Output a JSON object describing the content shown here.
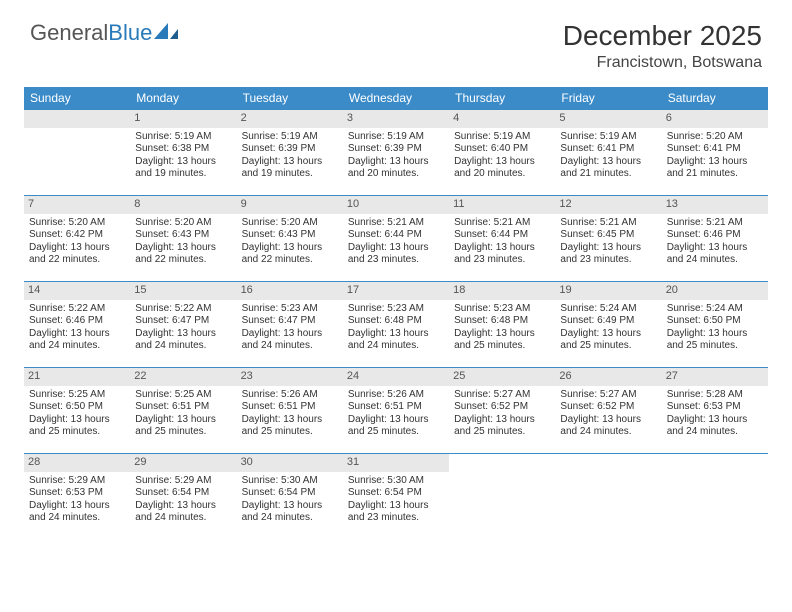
{
  "logo": {
    "part1": "General",
    "part2": "Blue"
  },
  "title": "December 2025",
  "location": "Francistown, Botswana",
  "header_bg": "#3b8bc9",
  "dayname_cell_bg": "#e8e8e8",
  "border_color": "#3b8bc9",
  "weekdays": [
    "Sunday",
    "Monday",
    "Tuesday",
    "Wednesday",
    "Thursday",
    "Friday",
    "Saturday"
  ],
  "weeks": [
    [
      {
        "day": "",
        "sunrise": "",
        "sunset": "",
        "daylight1": "",
        "daylight2": ""
      },
      {
        "day": "1",
        "sunrise": "Sunrise: 5:19 AM",
        "sunset": "Sunset: 6:38 PM",
        "daylight1": "Daylight: 13 hours",
        "daylight2": "and 19 minutes."
      },
      {
        "day": "2",
        "sunrise": "Sunrise: 5:19 AM",
        "sunset": "Sunset: 6:39 PM",
        "daylight1": "Daylight: 13 hours",
        "daylight2": "and 19 minutes."
      },
      {
        "day": "3",
        "sunrise": "Sunrise: 5:19 AM",
        "sunset": "Sunset: 6:39 PM",
        "daylight1": "Daylight: 13 hours",
        "daylight2": "and 20 minutes."
      },
      {
        "day": "4",
        "sunrise": "Sunrise: 5:19 AM",
        "sunset": "Sunset: 6:40 PM",
        "daylight1": "Daylight: 13 hours",
        "daylight2": "and 20 minutes."
      },
      {
        "day": "5",
        "sunrise": "Sunrise: 5:19 AM",
        "sunset": "Sunset: 6:41 PM",
        "daylight1": "Daylight: 13 hours",
        "daylight2": "and 21 minutes."
      },
      {
        "day": "6",
        "sunrise": "Sunrise: 5:20 AM",
        "sunset": "Sunset: 6:41 PM",
        "daylight1": "Daylight: 13 hours",
        "daylight2": "and 21 minutes."
      }
    ],
    [
      {
        "day": "7",
        "sunrise": "Sunrise: 5:20 AM",
        "sunset": "Sunset: 6:42 PM",
        "daylight1": "Daylight: 13 hours",
        "daylight2": "and 22 minutes."
      },
      {
        "day": "8",
        "sunrise": "Sunrise: 5:20 AM",
        "sunset": "Sunset: 6:43 PM",
        "daylight1": "Daylight: 13 hours",
        "daylight2": "and 22 minutes."
      },
      {
        "day": "9",
        "sunrise": "Sunrise: 5:20 AM",
        "sunset": "Sunset: 6:43 PM",
        "daylight1": "Daylight: 13 hours",
        "daylight2": "and 22 minutes."
      },
      {
        "day": "10",
        "sunrise": "Sunrise: 5:21 AM",
        "sunset": "Sunset: 6:44 PM",
        "daylight1": "Daylight: 13 hours",
        "daylight2": "and 23 minutes."
      },
      {
        "day": "11",
        "sunrise": "Sunrise: 5:21 AM",
        "sunset": "Sunset: 6:44 PM",
        "daylight1": "Daylight: 13 hours",
        "daylight2": "and 23 minutes."
      },
      {
        "day": "12",
        "sunrise": "Sunrise: 5:21 AM",
        "sunset": "Sunset: 6:45 PM",
        "daylight1": "Daylight: 13 hours",
        "daylight2": "and 23 minutes."
      },
      {
        "day": "13",
        "sunrise": "Sunrise: 5:21 AM",
        "sunset": "Sunset: 6:46 PM",
        "daylight1": "Daylight: 13 hours",
        "daylight2": "and 24 minutes."
      }
    ],
    [
      {
        "day": "14",
        "sunrise": "Sunrise: 5:22 AM",
        "sunset": "Sunset: 6:46 PM",
        "daylight1": "Daylight: 13 hours",
        "daylight2": "and 24 minutes."
      },
      {
        "day": "15",
        "sunrise": "Sunrise: 5:22 AM",
        "sunset": "Sunset: 6:47 PM",
        "daylight1": "Daylight: 13 hours",
        "daylight2": "and 24 minutes."
      },
      {
        "day": "16",
        "sunrise": "Sunrise: 5:23 AM",
        "sunset": "Sunset: 6:47 PM",
        "daylight1": "Daylight: 13 hours",
        "daylight2": "and 24 minutes."
      },
      {
        "day": "17",
        "sunrise": "Sunrise: 5:23 AM",
        "sunset": "Sunset: 6:48 PM",
        "daylight1": "Daylight: 13 hours",
        "daylight2": "and 24 minutes."
      },
      {
        "day": "18",
        "sunrise": "Sunrise: 5:23 AM",
        "sunset": "Sunset: 6:48 PM",
        "daylight1": "Daylight: 13 hours",
        "daylight2": "and 25 minutes."
      },
      {
        "day": "19",
        "sunrise": "Sunrise: 5:24 AM",
        "sunset": "Sunset: 6:49 PM",
        "daylight1": "Daylight: 13 hours",
        "daylight2": "and 25 minutes."
      },
      {
        "day": "20",
        "sunrise": "Sunrise: 5:24 AM",
        "sunset": "Sunset: 6:50 PM",
        "daylight1": "Daylight: 13 hours",
        "daylight2": "and 25 minutes."
      }
    ],
    [
      {
        "day": "21",
        "sunrise": "Sunrise: 5:25 AM",
        "sunset": "Sunset: 6:50 PM",
        "daylight1": "Daylight: 13 hours",
        "daylight2": "and 25 minutes."
      },
      {
        "day": "22",
        "sunrise": "Sunrise: 5:25 AM",
        "sunset": "Sunset: 6:51 PM",
        "daylight1": "Daylight: 13 hours",
        "daylight2": "and 25 minutes."
      },
      {
        "day": "23",
        "sunrise": "Sunrise: 5:26 AM",
        "sunset": "Sunset: 6:51 PM",
        "daylight1": "Daylight: 13 hours",
        "daylight2": "and 25 minutes."
      },
      {
        "day": "24",
        "sunrise": "Sunrise: 5:26 AM",
        "sunset": "Sunset: 6:51 PM",
        "daylight1": "Daylight: 13 hours",
        "daylight2": "and 25 minutes."
      },
      {
        "day": "25",
        "sunrise": "Sunrise: 5:27 AM",
        "sunset": "Sunset: 6:52 PM",
        "daylight1": "Daylight: 13 hours",
        "daylight2": "and 25 minutes."
      },
      {
        "day": "26",
        "sunrise": "Sunrise: 5:27 AM",
        "sunset": "Sunset: 6:52 PM",
        "daylight1": "Daylight: 13 hours",
        "daylight2": "and 24 minutes."
      },
      {
        "day": "27",
        "sunrise": "Sunrise: 5:28 AM",
        "sunset": "Sunset: 6:53 PM",
        "daylight1": "Daylight: 13 hours",
        "daylight2": "and 24 minutes."
      }
    ],
    [
      {
        "day": "28",
        "sunrise": "Sunrise: 5:29 AM",
        "sunset": "Sunset: 6:53 PM",
        "daylight1": "Daylight: 13 hours",
        "daylight2": "and 24 minutes."
      },
      {
        "day": "29",
        "sunrise": "Sunrise: 5:29 AM",
        "sunset": "Sunset: 6:54 PM",
        "daylight1": "Daylight: 13 hours",
        "daylight2": "and 24 minutes."
      },
      {
        "day": "30",
        "sunrise": "Sunrise: 5:30 AM",
        "sunset": "Sunset: 6:54 PM",
        "daylight1": "Daylight: 13 hours",
        "daylight2": "and 24 minutes."
      },
      {
        "day": "31",
        "sunrise": "Sunrise: 5:30 AM",
        "sunset": "Sunset: 6:54 PM",
        "daylight1": "Daylight: 13 hours",
        "daylight2": "and 23 minutes."
      },
      {
        "day": "",
        "sunrise": "",
        "sunset": "",
        "daylight1": "",
        "daylight2": ""
      },
      {
        "day": "",
        "sunrise": "",
        "sunset": "",
        "daylight1": "",
        "daylight2": ""
      },
      {
        "day": "",
        "sunrise": "",
        "sunset": "",
        "daylight1": "",
        "daylight2": ""
      }
    ]
  ]
}
